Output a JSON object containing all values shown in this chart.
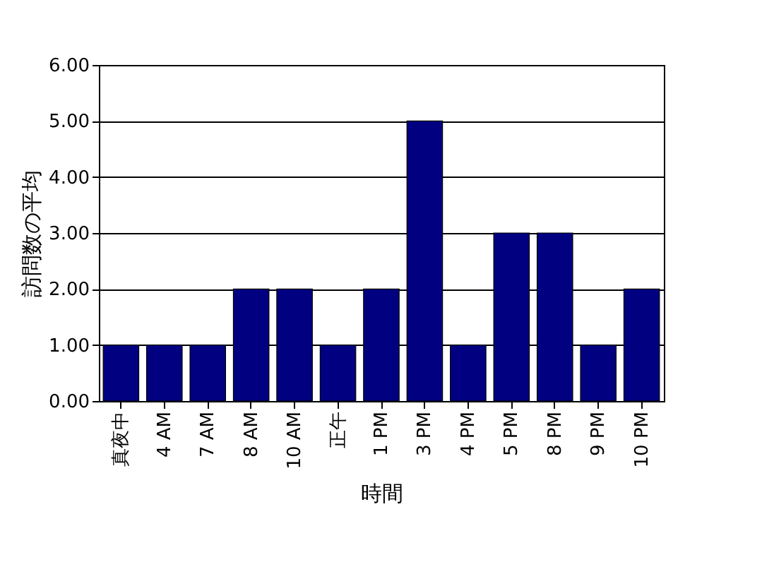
{
  "chart_data": {
    "type": "bar",
    "xlabel": "時間",
    "ylabel": "訪問数の平均",
    "categories": [
      "真夜中",
      "4 AM",
      "7 AM",
      "8 AM",
      "10 AM",
      "正午",
      "1 PM",
      "3 PM",
      "4 PM",
      "5 PM",
      "8 PM",
      "9 PM",
      "10 PM"
    ],
    "values": [
      1,
      1,
      1,
      2,
      2,
      1,
      2,
      5,
      1,
      3,
      3,
      1,
      2
    ],
    "color": "#000080",
    "ylim": [
      0,
      6
    ],
    "yticks": [
      {
        "value": 0,
        "label": "0.00"
      },
      {
        "value": 1,
        "label": "1.00"
      },
      {
        "value": 2,
        "label": "2.00"
      },
      {
        "value": 3,
        "label": "3.00"
      },
      {
        "value": 4,
        "label": "4.00"
      },
      {
        "value": 5,
        "label": "5.00"
      },
      {
        "value": 6,
        "label": "6.00"
      }
    ],
    "grid": "y"
  }
}
